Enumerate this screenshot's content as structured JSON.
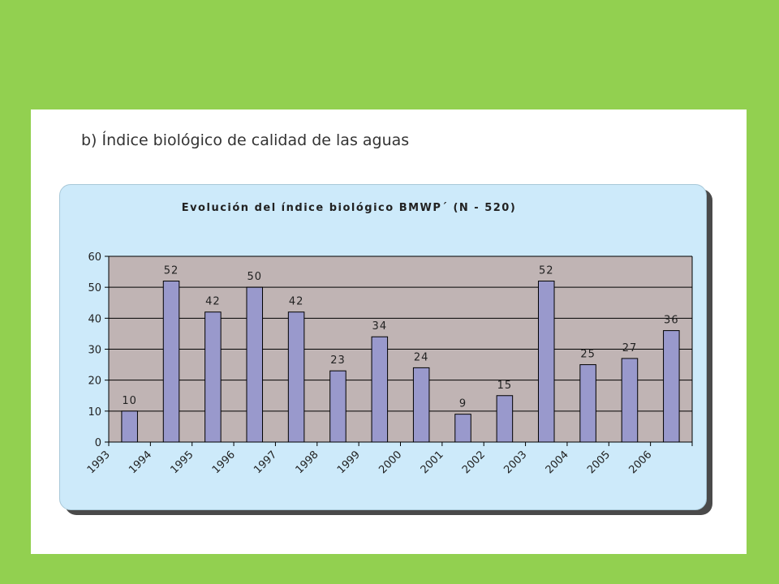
{
  "slide": {
    "heading": "b)  Índice biológico de calidad de las aguas"
  },
  "colors": {
    "background": "#92d050",
    "panel": "#cdeafa",
    "plot_area": "#c0b4b4",
    "bar": "#9999cc",
    "bar_border": "#000000"
  },
  "chart_data": {
    "type": "bar",
    "title": "Evolución del índice biológico BMWP´ (N - 520)",
    "categories": [
      "1993",
      "1994",
      "1995",
      "1996",
      "1997",
      "1998",
      "1999",
      "2000",
      "2001",
      "2002",
      "2003",
      "2004",
      "2005",
      "2006"
    ],
    "values": [
      10,
      52,
      42,
      50,
      42,
      23,
      34,
      24,
      9,
      15,
      52,
      25,
      27,
      36
    ],
    "data_labels": [
      "10",
      "52",
      "42",
      "50",
      "42",
      "23",
      "34",
      "24",
      "9",
      "15",
      "52",
      "25",
      "27",
      "36"
    ],
    "ylim": [
      0,
      60
    ],
    "yticks": [
      0,
      10,
      20,
      30,
      40,
      50,
      60
    ],
    "grid": true,
    "legend": "none"
  }
}
